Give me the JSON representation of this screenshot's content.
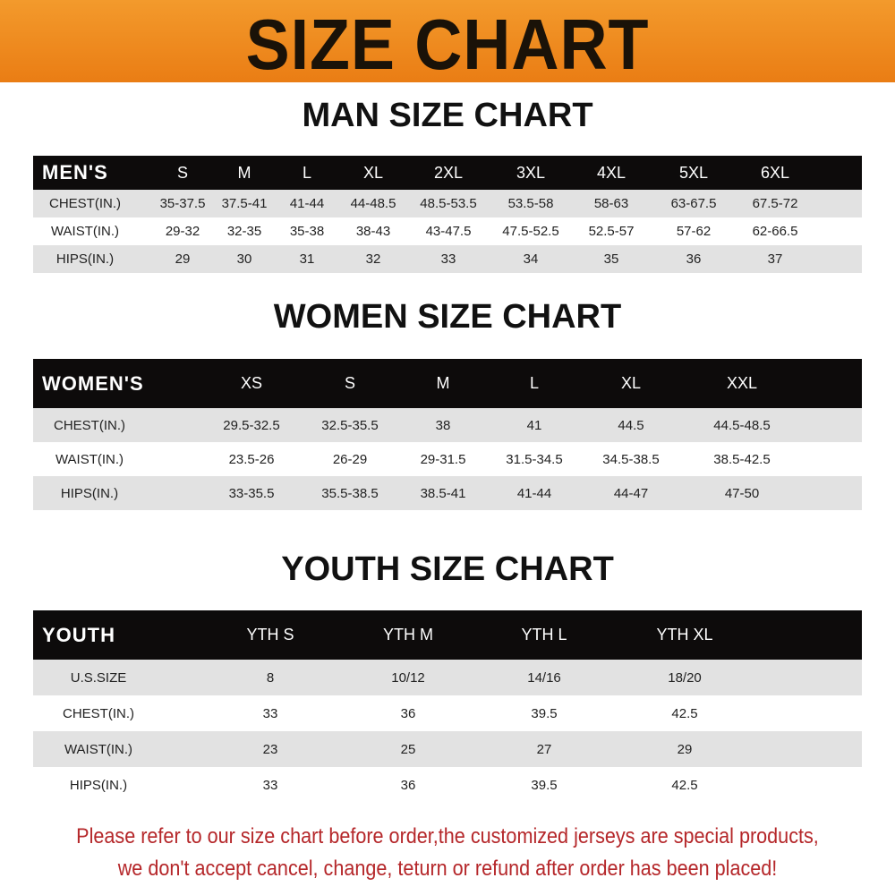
{
  "banner_title": "SIZE CHART",
  "colors": {
    "banner": "#f08a1e",
    "header_row": "#0d0b0b",
    "stripe": "#e2e2e2",
    "notice": "#b5272a"
  },
  "men": {
    "title": "MAN SIZE CHART",
    "header": [
      "MEN'S",
      "S",
      "M",
      "L",
      "XL",
      "2XL",
      "3XL",
      "4XL",
      "5XL",
      "6XL"
    ],
    "rows": [
      [
        "CHEST(IN.)",
        "35-37.5",
        "37.5-41",
        "41-44",
        "44-48.5",
        "48.5-53.5",
        "53.5-58",
        "58-63",
        "63-67.5",
        "67.5-72"
      ],
      [
        "WAIST(IN.)",
        "29-32",
        "32-35",
        "35-38",
        "38-43",
        "43-47.5",
        "47.5-52.5",
        "52.5-57",
        "57-62",
        "62-66.5"
      ],
      [
        "HIPS(IN.)",
        "29",
        "30",
        "31",
        "32",
        "33",
        "34",
        "35",
        "36",
        "37"
      ]
    ]
  },
  "women": {
    "title": "WOMEN SIZE CHART",
    "header": [
      "WOMEN'S",
      "XS",
      "S",
      "M",
      "L",
      "XL",
      "XXL"
    ],
    "rows": [
      [
        "CHEST(IN.)",
        "29.5-32.5",
        "32.5-35.5",
        "38",
        "41",
        "44.5",
        "44.5-48.5"
      ],
      [
        "WAIST(IN.)",
        "23.5-26",
        "26-29",
        "29-31.5",
        "31.5-34.5",
        "34.5-38.5",
        "38.5-42.5"
      ],
      [
        "HIPS(IN.)",
        "33-35.5",
        "35.5-38.5",
        "38.5-41",
        "41-44",
        "44-47",
        "47-50"
      ]
    ]
  },
  "youth": {
    "title": "YOUTH SIZE CHART",
    "header": [
      "YOUTH",
      "YTH S",
      "YTH M",
      "YTH L",
      "YTH XL"
    ],
    "rows": [
      [
        "U.S.SIZE",
        "8",
        "10/12",
        "14/16",
        "18/20"
      ],
      [
        "CHEST(IN.)",
        "33",
        "36",
        "39.5",
        "42.5"
      ],
      [
        "WAIST(IN.)",
        "23",
        "25",
        "27",
        "29"
      ],
      [
        "HIPS(IN.)",
        "33",
        "36",
        "39.5",
        "42.5"
      ]
    ]
  },
  "notice": {
    "line1": "Please refer to our size chart before order,the customized jerseys are special products,",
    "line2": "we don't accept cancel, change, teturn or refund after order has been placed!"
  }
}
